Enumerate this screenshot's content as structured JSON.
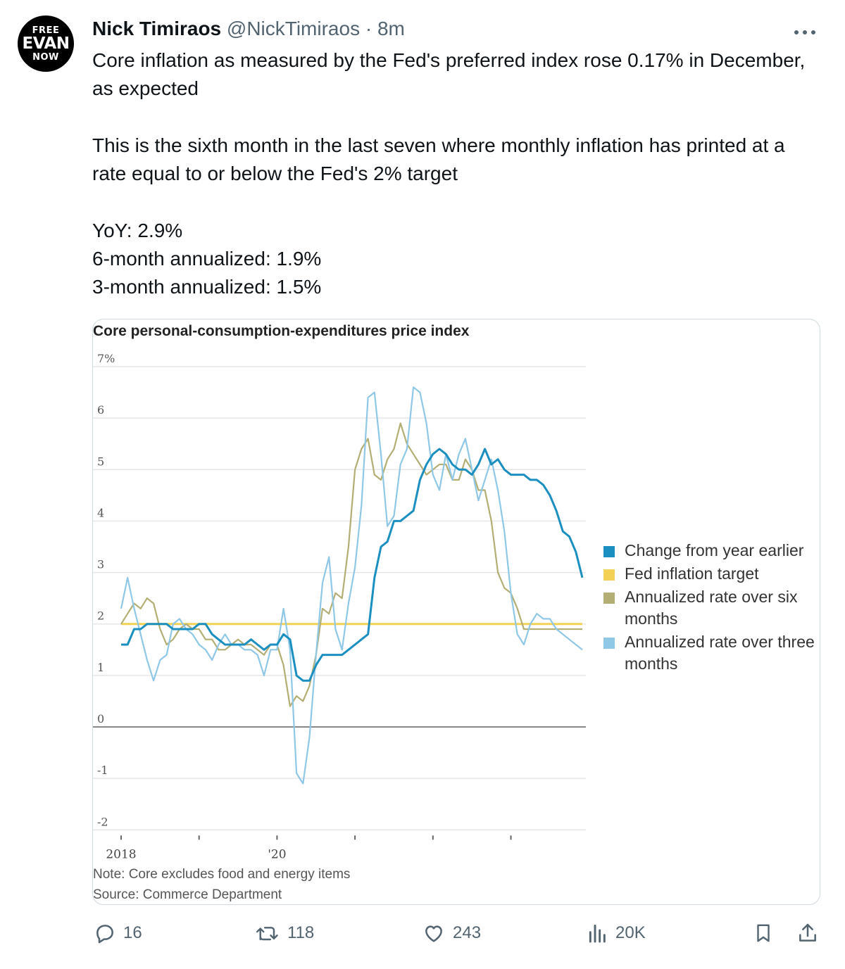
{
  "avatar": {
    "line1": "FREE",
    "line2": "EVAN",
    "line3": "NOW"
  },
  "tweet": {
    "author_name": "Nick Timiraos",
    "author_handle": "@NickTimiraos",
    "separator": "·",
    "time": "8m",
    "more_icon": "more-icon",
    "paragraphs": [
      "Core inflation as measured by the Fed's preferred index rose 0.17% in December, as expected",
      "This is the sixth month in the last seven where monthly inflation has printed at a rate equal to or below the Fed's 2% target"
    ],
    "stats": [
      "YoY: 2.9%",
      "6-month annualized: 1.9%",
      "3-month annualized: 1.5%"
    ]
  },
  "chart_data": {
    "type": "line",
    "title": "Core personal-consumption-expenditures price index",
    "ylim": [
      -2,
      7
    ],
    "y_ticks": [
      "7%",
      "6",
      "5",
      "4",
      "3",
      "2",
      "1",
      "0",
      "-1",
      "-2"
    ],
    "x_tick_labels": [
      "2018",
      "'20"
    ],
    "x_range": [
      "2018-01",
      "2023-12"
    ],
    "grid": true,
    "legend_position": "right",
    "series": [
      {
        "name": "Change from year earlier",
        "color": "#1a8fc0",
        "values": [
          1.6,
          1.6,
          1.9,
          1.9,
          2.0,
          2.0,
          2.0,
          2.0,
          1.9,
          1.9,
          1.9,
          1.9,
          2.0,
          2.0,
          1.8,
          1.7,
          1.6,
          1.6,
          1.6,
          1.6,
          1.7,
          1.6,
          1.5,
          1.6,
          1.6,
          1.8,
          1.7,
          1.0,
          0.9,
          0.9,
          1.2,
          1.4,
          1.4,
          1.4,
          1.4,
          1.5,
          1.6,
          1.7,
          1.8,
          2.9,
          3.5,
          3.6,
          4.0,
          4.0,
          4.1,
          4.2,
          4.8,
          5.1,
          5.3,
          5.4,
          5.3,
          5.1,
          5.0,
          5.0,
          4.9,
          5.1,
          5.4,
          5.1,
          5.2,
          5.0,
          4.9,
          4.9,
          4.9,
          4.8,
          4.8,
          4.7,
          4.5,
          4.2,
          3.8,
          3.7,
          3.4,
          2.9
        ]
      },
      {
        "name": "Fed inflation target",
        "color": "#f2d155",
        "values": [
          2.0,
          2.0,
          2.0,
          2.0,
          2.0,
          2.0,
          2.0,
          2.0,
          2.0,
          2.0,
          2.0,
          2.0,
          2.0,
          2.0,
          2.0,
          2.0,
          2.0,
          2.0,
          2.0,
          2.0,
          2.0,
          2.0,
          2.0,
          2.0,
          2.0,
          2.0,
          2.0,
          2.0,
          2.0,
          2.0,
          2.0,
          2.0,
          2.0,
          2.0,
          2.0,
          2.0,
          2.0,
          2.0,
          2.0,
          2.0,
          2.0,
          2.0,
          2.0,
          2.0,
          2.0,
          2.0,
          2.0,
          2.0,
          2.0,
          2.0,
          2.0,
          2.0,
          2.0,
          2.0,
          2.0,
          2.0,
          2.0,
          2.0,
          2.0,
          2.0,
          2.0,
          2.0,
          2.0,
          2.0,
          2.0,
          2.0,
          2.0,
          2.0,
          2.0,
          2.0,
          2.0,
          2.0
        ]
      },
      {
        "name": "Annualized rate over six months",
        "color": "#b3ae74",
        "values": [
          2.0,
          2.2,
          2.4,
          2.3,
          2.5,
          2.4,
          1.9,
          1.6,
          1.7,
          1.9,
          2.0,
          1.9,
          1.9,
          1.7,
          1.7,
          1.5,
          1.5,
          1.6,
          1.7,
          1.6,
          1.6,
          1.5,
          1.4,
          1.6,
          1.6,
          1.2,
          0.4,
          0.6,
          0.5,
          0.8,
          1.4,
          2.3,
          2.2,
          2.6,
          2.5,
          3.5,
          5.0,
          5.4,
          5.6,
          4.9,
          4.8,
          5.2,
          5.4,
          5.9,
          5.5,
          5.3,
          5.1,
          4.9,
          5.0,
          5.1,
          5.1,
          4.8,
          4.8,
          5.2,
          5.0,
          4.6,
          4.6,
          4.0,
          3.0,
          2.7,
          2.6,
          2.3,
          1.9,
          1.9,
          1.9,
          1.9,
          1.9,
          1.9,
          1.9,
          1.9,
          1.9,
          1.9
        ]
      },
      {
        "name": "Annualized rate over three months",
        "color": "#8fc8e6",
        "values": [
          2.3,
          2.9,
          2.3,
          1.8,
          1.3,
          0.9,
          1.3,
          1.4,
          2.0,
          2.1,
          1.9,
          1.8,
          1.6,
          1.5,
          1.3,
          1.6,
          1.8,
          1.6,
          1.6,
          1.5,
          1.5,
          1.4,
          1.0,
          1.5,
          1.5,
          2.3,
          1.5,
          -0.9,
          -1.1,
          -0.2,
          1.4,
          2.8,
          3.3,
          1.9,
          1.5,
          2.4,
          3.1,
          4.3,
          6.4,
          6.5,
          5.3,
          3.9,
          4.1,
          5.1,
          5.4,
          6.6,
          6.5,
          5.9,
          4.9,
          4.6,
          5.3,
          4.8,
          5.3,
          5.6,
          5.0,
          4.4,
          4.8,
          5.2,
          4.6,
          3.8,
          2.6,
          1.8,
          1.6,
          2.0,
          2.2,
          2.1,
          2.1,
          1.9,
          1.8,
          1.7,
          1.6,
          1.5
        ]
      }
    ],
    "note": "Note: Core excludes food and energy items",
    "source": "Source: Commerce Department"
  },
  "actions": {
    "reply": {
      "icon": "reply-icon",
      "count": "16"
    },
    "retweet": {
      "icon": "retweet-icon",
      "count": "118"
    },
    "like": {
      "icon": "heart-icon",
      "count": "243"
    },
    "views": {
      "icon": "views-icon",
      "count": "20K"
    },
    "bookmark": {
      "icon": "bookmark-icon"
    },
    "share": {
      "icon": "share-icon"
    }
  }
}
